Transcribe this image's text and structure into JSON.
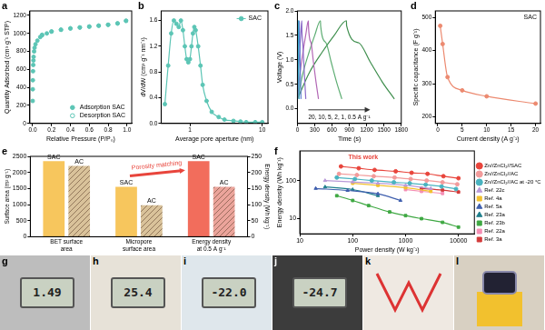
{
  "chart_data": [
    {
      "panel": "a",
      "type": "scatter",
      "x_label": "Relative Pressure (P/P₀)",
      "y_label": "Quantity Adsorbed (cm³ g⁻¹ STP)",
      "series": [
        {
          "name": "Adsorption SAC",
          "color": "#5cc5b5",
          "marker": "circle",
          "x": [
            0.0005,
            0.001,
            0.002,
            0.004,
            0.006,
            0.008,
            0.01,
            0.015,
            0.02,
            0.03,
            0.05,
            0.08,
            0.1,
            0.15,
            0.2,
            0.3,
            0.4,
            0.5,
            0.6,
            0.7,
            0.8,
            0.9,
            0.99
          ],
          "values": [
            250,
            380,
            480,
            580,
            650,
            700,
            740,
            800,
            840,
            880,
            920,
            960,
            980,
            1000,
            1020,
            1040,
            1055,
            1065,
            1075,
            1085,
            1095,
            1110,
            1140
          ]
        },
        {
          "name": "Desorption SAC",
          "color": "#5cc5b5",
          "marker": "open_circle",
          "x": [
            0.99,
            0.9,
            0.8,
            0.7,
            0.6,
            0.5,
            0.4,
            0.3,
            0.2,
            0.1
          ],
          "values": [
            1140,
            1112,
            1097,
            1087,
            1077,
            1067,
            1057,
            1042,
            1022,
            985
          ]
        }
      ],
      "xlim": [
        -0.03,
        1.05
      ],
      "xticks": [
        {
          "value": 0,
          "label": "0.0"
        },
        0.2,
        0.4,
        0.6,
        0.8,
        {
          "value": 1,
          "label": "1.0"
        }
      ],
      "ylim": [
        0,
        1250
      ],
      "yticks": [
        0,
        200,
        400,
        600,
        800,
        1000,
        1200
      ],
      "legend": "bottom-right",
      "grid": false
    },
    {
      "panel": "b",
      "type": "line",
      "x_label": "Average pore aperture (nm)",
      "y_label": "dV/dW (cm³ g⁻¹ nm⁻¹)",
      "log": "x",
      "x": [
        0.45,
        0.5,
        0.55,
        0.6,
        0.65,
        0.7,
        0.75,
        0.8,
        0.85,
        0.9,
        0.95,
        1.0,
        1.05,
        1.1,
        1.15,
        1.2,
        1.3,
        1.4,
        1.5,
        1.7,
        2,
        2.5,
        3,
        4,
        5,
        6,
        8,
        10
      ],
      "series": [
        {
          "name": "SAC",
          "color": "#5cc5b5",
          "marker": "circle",
          "values": [
            0.3,
            0.9,
            1.4,
            1.6,
            1.55,
            1.5,
            1.6,
            1.45,
            1.2,
            1.0,
            0.95,
            1.0,
            1.2,
            1.4,
            1.5,
            1.45,
            1.2,
            0.9,
            0.6,
            0.35,
            0.18,
            0.1,
            0.06,
            0.04,
            0.03,
            0.02,
            0.02,
            0.02
          ]
        }
      ],
      "xlim": [
        0.4,
        12
      ],
      "xticks": [
        1,
        10
      ],
      "ylim": [
        0,
        1.75
      ],
      "yticks": [
        {
          "value": 0,
          "label": "0.0"
        },
        0.4,
        0.8,
        1.2,
        1.6
      ],
      "legend": "top-right",
      "grid": false
    },
    {
      "panel": "c",
      "type": "line",
      "x_label": "Time (s)",
      "y_label": "Voltage (V)",
      "series": [
        {
          "color": "#3aa6c9",
          "x": [
            0,
            4,
            7,
            11,
            14,
            14.5,
            18,
            21,
            25,
            28
          ],
          "values": [
            0.2,
            0.75,
            1.15,
            1.5,
            1.8,
            1.7,
            1.35,
            0.95,
            0.55,
            0.2
          ]
        },
        {
          "color": "#5b7fd1",
          "x": [
            0,
            8,
            16,
            24,
            32,
            33,
            40,
            47,
            55,
            62
          ],
          "values": [
            0.2,
            0.75,
            1.15,
            1.5,
            1.8,
            1.7,
            1.35,
            0.95,
            0.55,
            0.2
          ]
        },
        {
          "color": "#8c6bc8",
          "x": [
            0,
            19,
            38,
            56,
            75,
            76,
            93,
            110,
            128,
            145
          ],
          "values": [
            0.2,
            0.75,
            1.15,
            1.5,
            1.8,
            1.7,
            1.35,
            0.95,
            0.55,
            0.2
          ]
        },
        {
          "color": "#b267b5",
          "x": [
            0,
            48,
            95,
            143,
            190,
            191,
            235,
            278,
            322,
            365
          ],
          "values": [
            0.2,
            0.75,
            1.15,
            1.5,
            1.8,
            1.7,
            1.35,
            0.95,
            0.55,
            0.2
          ]
        },
        {
          "color": "#5fae74",
          "x": [
            0,
            100,
            200,
            300,
            400,
            402,
            494,
            586,
            678,
            770
          ],
          "values": [
            0.2,
            0.75,
            1.15,
            1.5,
            1.8,
            1.7,
            1.35,
            0.95,
            0.55,
            0.2
          ]
        },
        {
          "color": "#3e8e4d",
          "x": [
            0,
            212,
            425,
            638,
            850,
            852,
            1060,
            1265,
            1470,
            1680
          ],
          "values": [
            0.2,
            0.75,
            1.15,
            1.5,
            1.8,
            1.7,
            1.35,
            0.95,
            0.55,
            0.2
          ]
        }
      ],
      "annotations": [
        "20, 10, 5, 2, 1, 0.5 A g⁻¹"
      ],
      "xlim": [
        0,
        1800
      ],
      "xticks": [
        0,
        300,
        600,
        900,
        1200,
        1500,
        1800
      ],
      "ylim": [
        -0.3,
        2.0
      ],
      "yticks": [
        {
          "value": 0,
          "label": "0.0"
        },
        0.5,
        {
          "value": 1,
          "label": "1.0"
        },
        1.5,
        {
          "value": 2,
          "label": "2.0"
        }
      ],
      "grid": false
    },
    {
      "panel": "d",
      "type": "line",
      "x_label": "Current density (A g⁻¹)",
      "y_label": "Specific capacitance (F g⁻¹)",
      "x": [
        0.5,
        1,
        2,
        5,
        10,
        20
      ],
      "series": [
        {
          "color": "#ec8a70",
          "marker": "circle",
          "values": [
            475,
            420,
            320,
            280,
            262,
            240
          ]
        }
      ],
      "annotations": [
        "SAC"
      ],
      "xlim": [
        -0.5,
        21
      ],
      "xticks": [
        0,
        5,
        10,
        15,
        20
      ],
      "ylim": [
        180,
        520
      ],
      "yticks": [
        200,
        300,
        400,
        500
      ],
      "grid": false
    },
    {
      "panel": "e",
      "type": "bar",
      "y_label": "Surface area (m² g⁻¹)",
      "y2_label": "Energy density (Wh kg⁻¹)",
      "categories": [
        "BET surface area",
        "Micropore surface area",
        "Energy density at 0.5 A g⁻¹"
      ],
      "series": [
        {
          "name": "SAC",
          "color": "#f7c65d",
          "values": [
            2350,
            1550,
            null
          ]
        },
        {
          "name": "AC",
          "color": "#d9c29a",
          "values": [
            2200,
            980,
            null
          ]
        },
        {
          "name": "SAC",
          "color": "#f26d5c",
          "values": [
            null,
            null,
            235
          ],
          "axis": "y2"
        },
        {
          "name": "AC",
          "color": "#eba49b",
          "values": [
            null,
            null,
            155
          ],
          "axis": "y2"
        }
      ],
      "annotations": [
        "Porosity matching"
      ],
      "ylim": [
        0,
        2500
      ],
      "yticks": [
        0,
        500,
        1000,
        1500,
        2000,
        2500
      ],
      "y2lim": [
        0,
        250
      ],
      "y2ticks": [
        0,
        50,
        100,
        150,
        200,
        250
      ],
      "grid": false
    },
    {
      "panel": "f",
      "type": "line",
      "x_label": "Power density (W kg⁻¹)",
      "y_label": "Energy density (Wh kg⁻¹)",
      "log": true,
      "series": [
        {
          "name": "Zn//ZnCl₂//SAC",
          "color": "#e8453c",
          "marker": "circle",
          "x": [
            60,
            130,
            260,
            650,
            1300,
            2600,
            5200,
            10000
          ],
          "values": [
            235,
            210,
            190,
            175,
            160,
            150,
            130,
            115
          ]
        },
        {
          "name": "Zn//ZnCl₂//AC",
          "color": "#f29b9b",
          "marker": "circle",
          "x": [
            55,
            120,
            250,
            620,
            1250,
            2500,
            5000,
            9500
          ],
          "values": [
            150,
            140,
            130,
            120,
            110,
            100,
            90,
            80
          ]
        },
        {
          "name": "Zn//ZnCl₂//AC at -20 °C",
          "color": "#49b3c0",
          "marker": "circle",
          "x": [
            50,
            110,
            230,
            600,
            1200,
            2400,
            4800,
            9000
          ],
          "values": [
            120,
            110,
            100,
            90,
            85,
            78,
            70,
            60
          ]
        },
        {
          "name": "Ref. 22c",
          "color": "#b99ad8",
          "marker": "triangle",
          "x": [
            30,
            100,
            300,
            1000,
            3000
          ],
          "values": [
            100,
            92,
            85,
            75,
            62
          ]
        },
        {
          "name": "Ref. 4a",
          "color": "#f2c12e",
          "marker": "square",
          "x": [
            100,
            300,
            1000,
            3000
          ],
          "values": [
            85,
            75,
            65,
            52
          ]
        },
        {
          "name": "Ref. 5a",
          "color": "#3f5fae",
          "marker": "triangle",
          "x": [
            20,
            80,
            300,
            800
          ],
          "values": [
            62,
            55,
            45,
            30
          ]
        },
        {
          "name": "Ref. 23a",
          "color": "#1f7f8c",
          "marker": "triangle",
          "x": [
            30,
            100,
            300
          ],
          "values": [
            68,
            58,
            40
          ]
        },
        {
          "name": "Ref. 23b",
          "color": "#3fa843",
          "marker": "square",
          "x": [
            50,
            100,
            200,
            500,
            1000,
            2000,
            5000,
            10000
          ],
          "values": [
            40,
            30,
            22,
            15,
            12,
            10,
            8,
            6
          ]
        },
        {
          "name": "Ref. 22a",
          "color": "#f58fb5",
          "marker": "square",
          "x": [
            1000,
            2000,
            5000
          ],
          "values": [
            58,
            52,
            46
          ]
        },
        {
          "name": "Ref. 3a",
          "color": "#d23a3a",
          "marker": "square",
          "x": [
            2000,
            5000,
            10000
          ],
          "values": [
            62,
            56,
            50
          ]
        }
      ],
      "annotations": [
        "This work"
      ],
      "xlim": [
        10,
        20000
      ],
      "xticks": [
        10,
        100,
        1000,
        10000
      ],
      "ylim": [
        4,
        600
      ],
      "yticks": [
        10,
        100
      ],
      "legend": "right",
      "grid": false
    }
  ],
  "photos": [
    {
      "panel": "g",
      "reading": "1.49"
    },
    {
      "panel": "h",
      "reading": "25.4"
    },
    {
      "panel": "i",
      "reading": "-22.0"
    },
    {
      "panel": "j",
      "reading": "-24.7"
    },
    {
      "panel": "k"
    },
    {
      "panel": "l"
    }
  ]
}
